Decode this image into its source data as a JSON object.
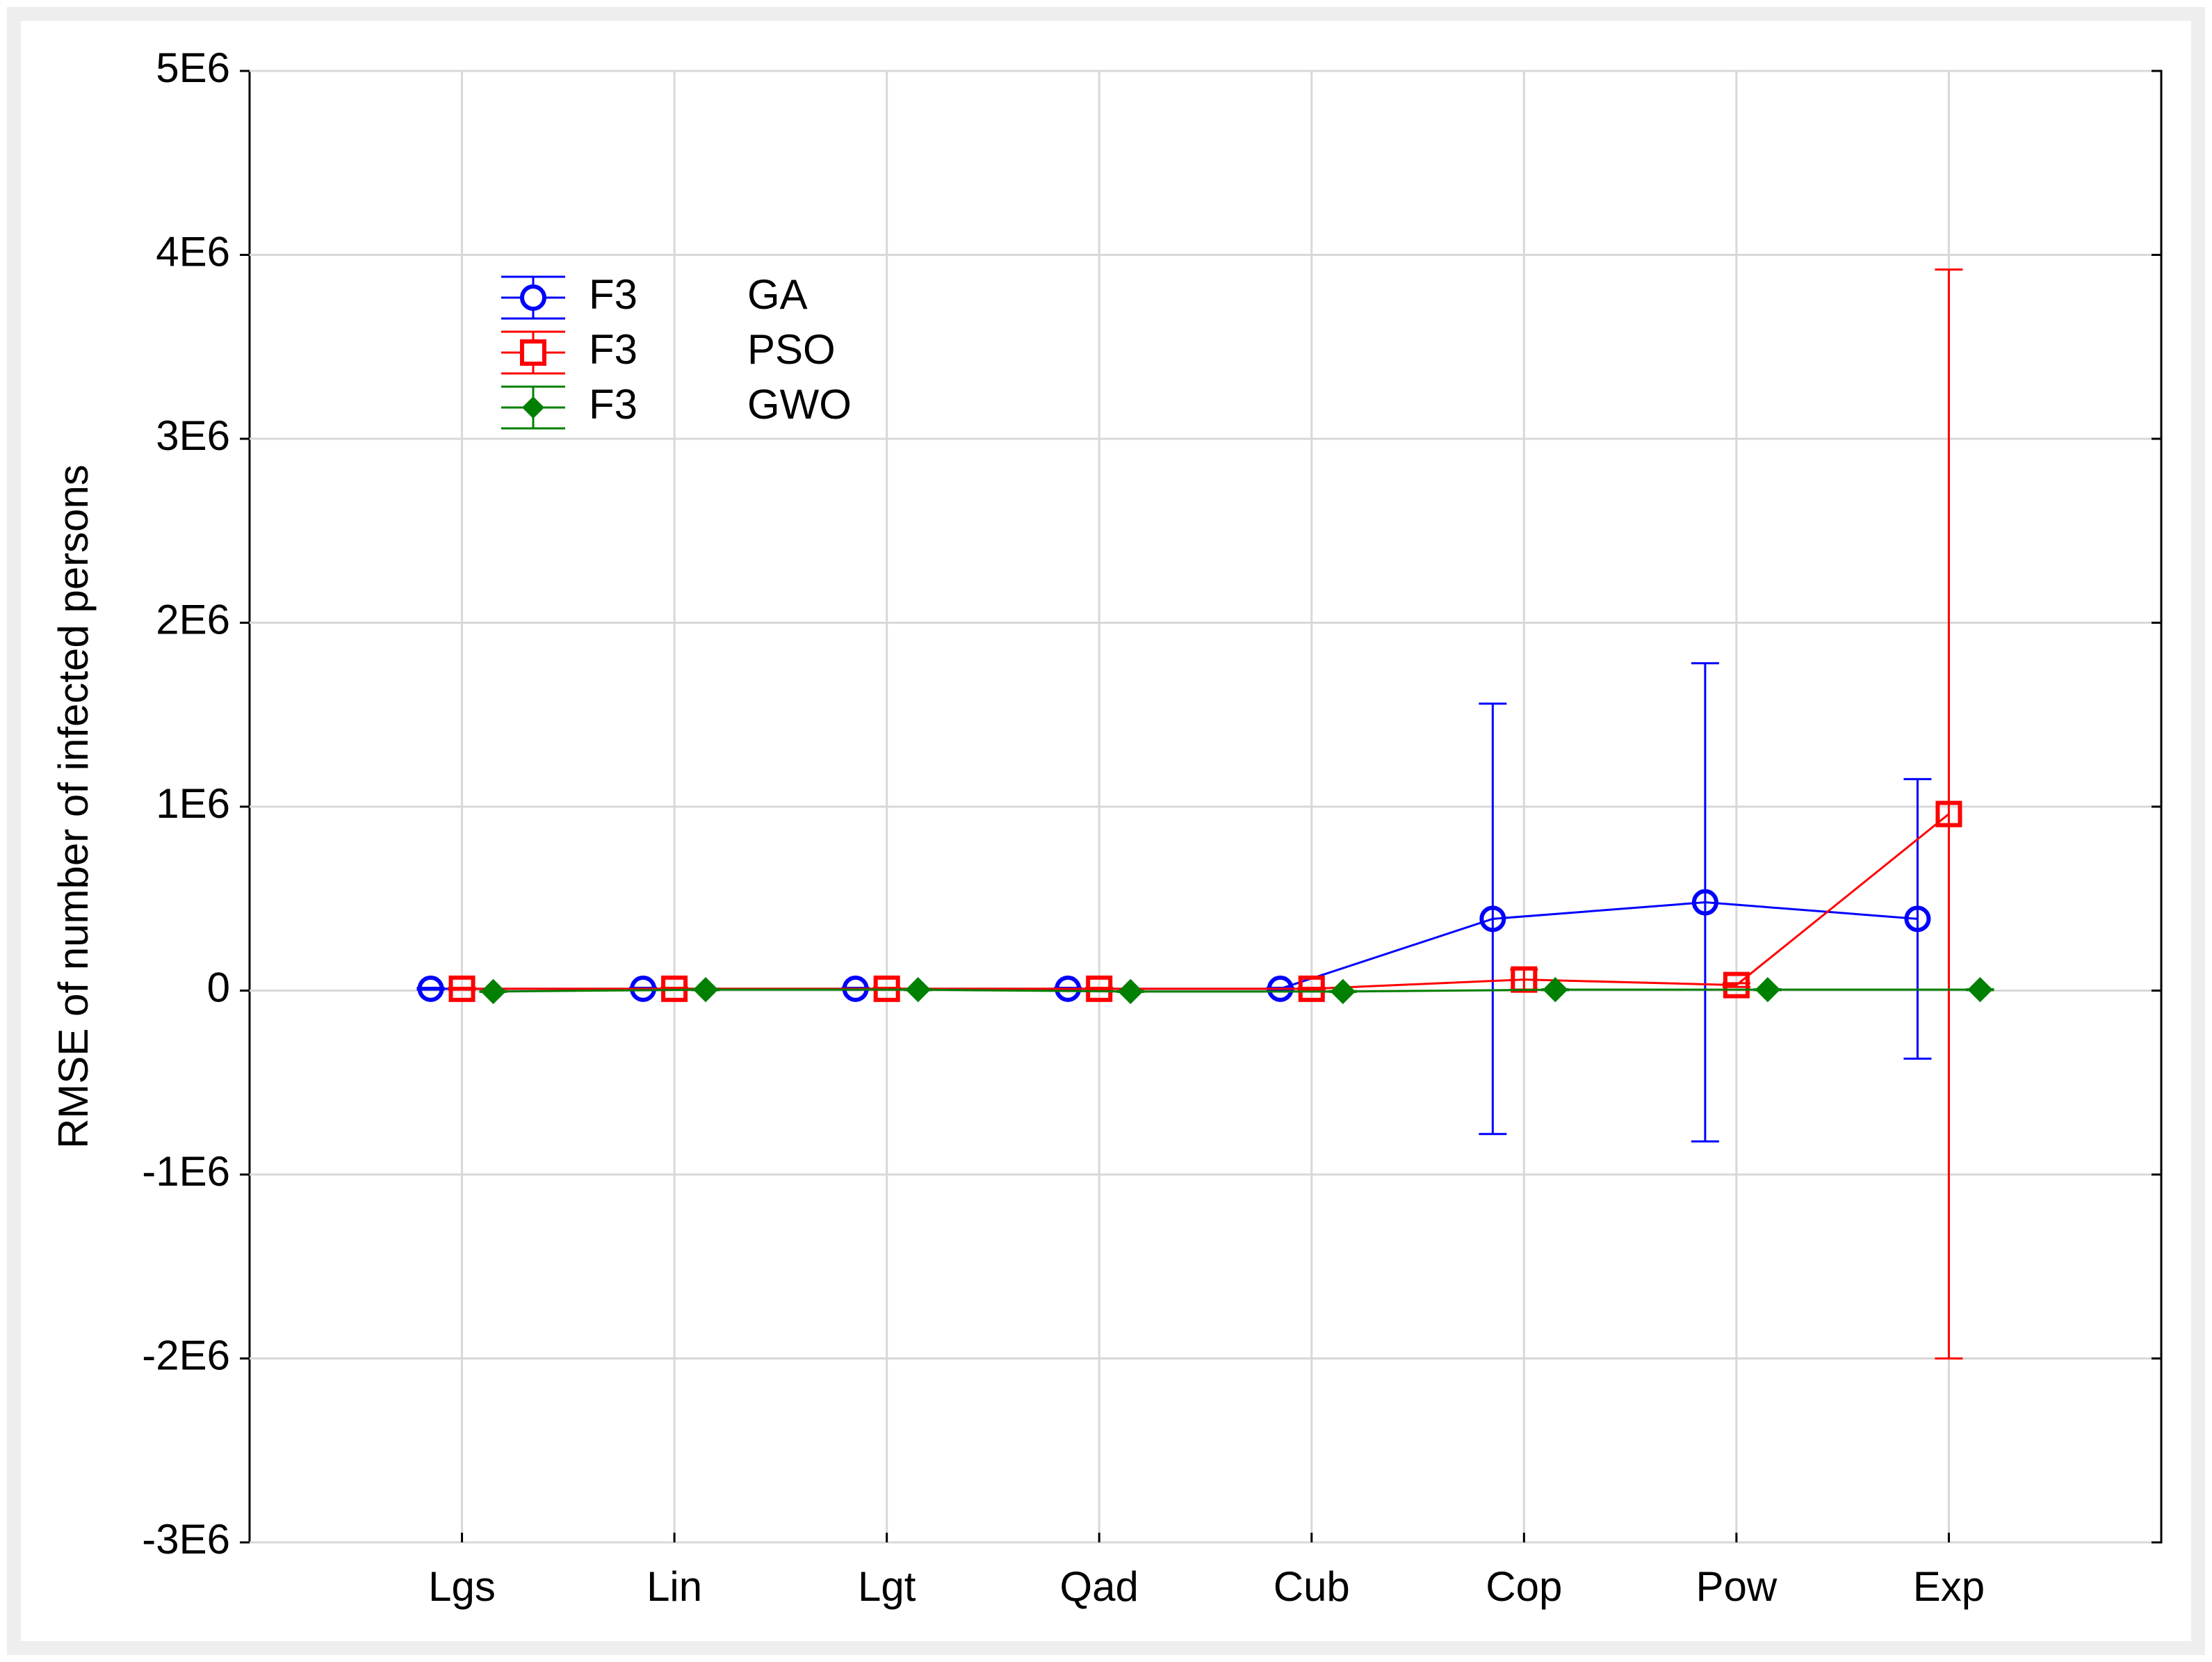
{
  "chart_data": {
    "type": "line",
    "y_label": "RMSE of number of infected persons",
    "categories": [
      "Lgs",
      "Lin",
      "Lgt",
      "Qad",
      "Cub",
      "Cop",
      "Pow",
      "Exp"
    ],
    "series": [
      {
        "group": "F3",
        "name": "GA",
        "color": "#0000ff",
        "marker": "circle",
        "values": [
          10000,
          10000,
          10000,
          10000,
          10000,
          390000,
          480000,
          390000
        ],
        "errors": [
          5000,
          5000,
          5000,
          5000,
          5000,
          1170000,
          1300000,
          760000
        ]
      },
      {
        "group": "F3",
        "name": "PSO",
        "color": "#ff0000",
        "marker": "square",
        "values": [
          10000,
          10000,
          10000,
          10000,
          10000,
          60000,
          30000,
          960000
        ],
        "errors": [
          5000,
          5000,
          5000,
          5000,
          5000,
          55000,
          10000,
          2960000
        ]
      },
      {
        "group": "F3",
        "name": "GWO",
        "color": "#008000",
        "marker": "diamond",
        "values": [
          -5000,
          5000,
          5000,
          -5000,
          -5000,
          5000,
          5000,
          5000
        ],
        "errors": [
          2000,
          2000,
          2000,
          2000,
          2000,
          2000,
          2000,
          2000
        ]
      }
    ],
    "ylim": [
      -3000000,
      5000000
    ],
    "yticks": [
      {
        "value": -3000000,
        "label": "-3E6"
      },
      {
        "value": -2000000,
        "label": "-2E6"
      },
      {
        "value": -1000000,
        "label": "-1E6"
      },
      0,
      {
        "value": 1000000,
        "label": "1E6"
      },
      {
        "value": 2000000,
        "label": "2E6"
      },
      {
        "value": 3000000,
        "label": "3E6"
      },
      {
        "value": 4000000,
        "label": "4E6"
      },
      {
        "value": 5000000,
        "label": "5E6"
      }
    ],
    "grid": true,
    "legend": "upper left"
  }
}
